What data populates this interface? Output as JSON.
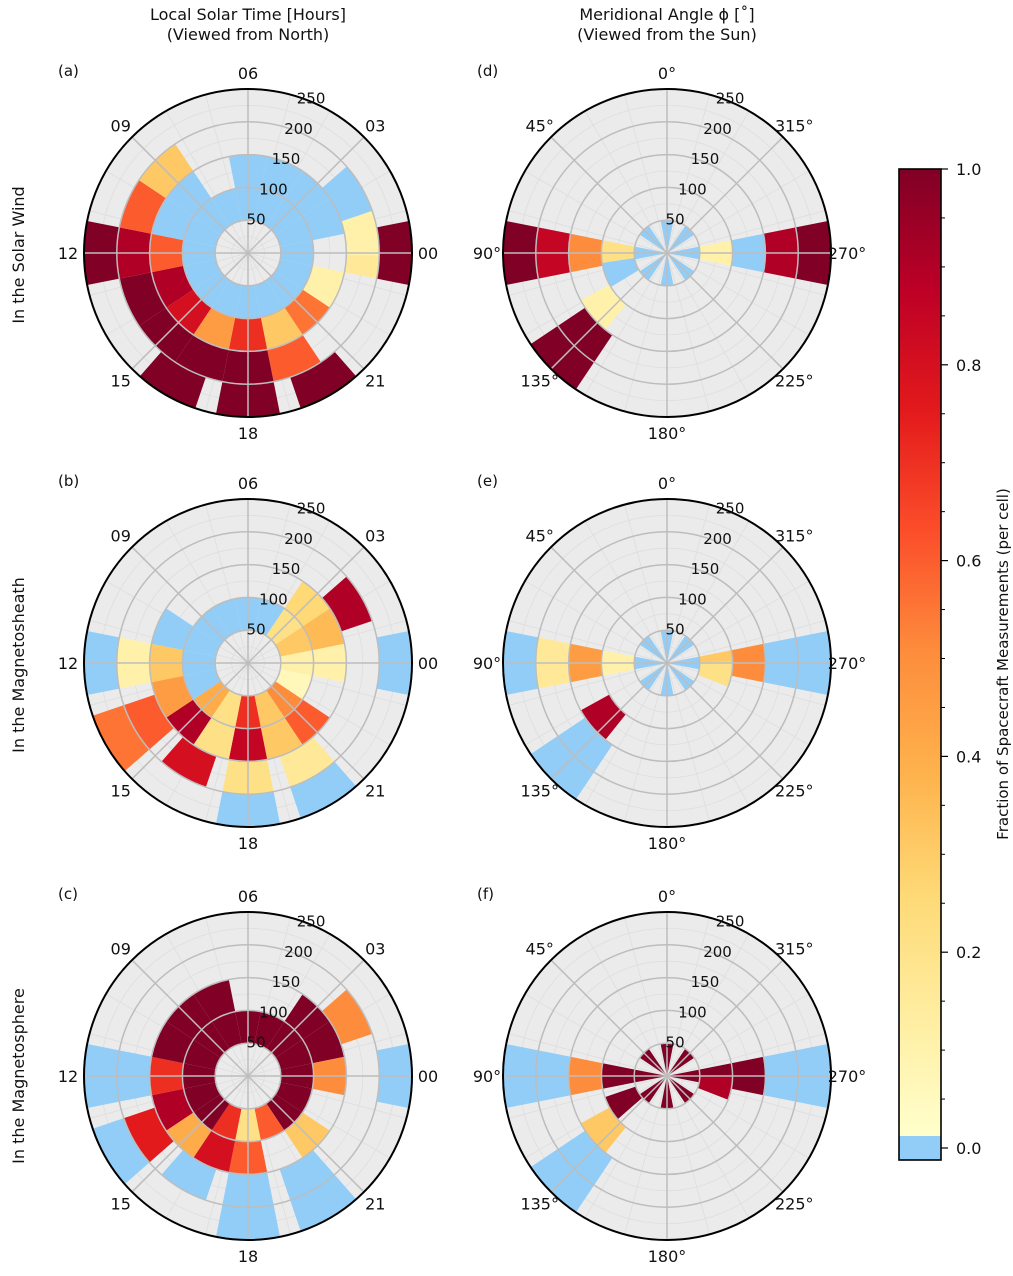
{
  "column_titles": [
    [
      "Local Solar Time [Hours]",
      "(Viewed from North)"
    ],
    [
      "Meridional Angle ϕ [˚]",
      "(Viewed from the Sun)"
    ]
  ],
  "row_labels": [
    "In the Solar Wind",
    "In the Magnetosheath",
    "In the Magnetosphere"
  ],
  "colorbar": {
    "label": "Fraction of Spacecraft Measurements (per cell)",
    "ticks": [
      "1.0",
      "0.8",
      "0.6",
      "0.4",
      "0.2",
      "0.0"
    ],
    "zero_color": "#91cdf7",
    "stops": [
      "#ffffcc",
      "#ffeda0",
      "#fed976",
      "#feb24c",
      "#fd8d3c",
      "#fc4e2a",
      "#e31a1c",
      "#bd0026",
      "#800026"
    ]
  },
  "colors": {
    "background": "#ebebeb",
    "grid": "#bdbdbd",
    "frame": "#000000"
  },
  "chart_data": [
    {
      "panel": "(a)",
      "type": "polar-heatmap",
      "coordinate": "local_solar_time",
      "region": "In the Solar Wind",
      "angle_labels": [
        "06",
        "03",
        "00",
        "21",
        "18",
        "15",
        "12",
        "09"
      ],
      "r_tick_labels": [
        "50",
        "100",
        "150",
        "200",
        "250"
      ],
      "rlim": [
        0,
        250
      ],
      "cells": [
        {
          "a": 0,
          "r": 75,
          "v": 0
        },
        {
          "a": 22.5,
          "r": 75,
          "v": 0
        },
        {
          "a": 45,
          "r": 75,
          "v": 0
        },
        {
          "a": 67.5,
          "r": 75,
          "v": 0
        },
        {
          "a": 90,
          "r": 75,
          "v": 0
        },
        {
          "a": 112.5,
          "r": 75,
          "v": 0
        },
        {
          "a": 135,
          "r": 75,
          "v": 0
        },
        {
          "a": 157.5,
          "r": 75,
          "v": 0
        },
        {
          "a": 180,
          "r": 75,
          "v": 0
        },
        {
          "a": 202.5,
          "r": 75,
          "v": 0
        },
        {
          "a": 225,
          "r": 75,
          "v": 0
        },
        {
          "a": 247.5,
          "r": 75,
          "v": 0
        },
        {
          "a": 270,
          "r": 75,
          "v": 0
        },
        {
          "a": 292.5,
          "r": 75,
          "v": 0
        },
        {
          "a": 315,
          "r": 75,
          "v": 0
        },
        {
          "a": 337.5,
          "r": 75,
          "v": 0
        },
        {
          "a": 0,
          "r": 125,
          "v": 0
        },
        {
          "a": 22.5,
          "r": 125,
          "v": 0
        },
        {
          "a": 45,
          "r": 125,
          "v": 0
        },
        {
          "a": 67.5,
          "r": 125,
          "v": 0
        },
        {
          "a": 112.5,
          "r": 125,
          "v": 0.1
        },
        {
          "a": 135,
          "r": 125,
          "v": 0.55
        },
        {
          "a": 157.5,
          "r": 125,
          "v": 0.3
        },
        {
          "a": 180,
          "r": 125,
          "v": 0.7
        },
        {
          "a": 202.5,
          "r": 125,
          "v": 0.45
        },
        {
          "a": 225,
          "r": 125,
          "v": 0.8
        },
        {
          "a": 247.5,
          "r": 125,
          "v": 0.9
        },
        {
          "a": 270,
          "r": 125,
          "v": 0.6
        },
        {
          "a": 292.5,
          "r": 125,
          "v": 0.0
        },
        {
          "a": 315,
          "r": 125,
          "v": 0
        },
        {
          "a": 90,
          "r": 175,
          "v": 0.15
        },
        {
          "a": 80,
          "r": 175,
          "v": 0.1
        },
        {
          "a": 60,
          "r": 175,
          "v": 0
        },
        {
          "a": 157.5,
          "r": 175,
          "v": 0.6
        },
        {
          "a": 180,
          "r": 175,
          "v": 1
        },
        {
          "a": 202.5,
          "r": 175,
          "v": 1
        },
        {
          "a": 225,
          "r": 175,
          "v": 1
        },
        {
          "a": 247.5,
          "r": 175,
          "v": 1
        },
        {
          "a": 270,
          "r": 175,
          "v": 0.9
        },
        {
          "a": 292.5,
          "r": 175,
          "v": 0.6
        },
        {
          "a": 315,
          "r": 175,
          "v": 0.3
        },
        {
          "a": 90,
          "r": 225,
          "v": 1
        },
        {
          "a": 150,
          "r": 225,
          "v": 1
        },
        {
          "a": 180,
          "r": 225,
          "v": 1
        },
        {
          "a": 210,
          "r": 225,
          "v": 1
        },
        {
          "a": 270,
          "r": 225,
          "v": 1
        }
      ]
    },
    {
      "panel": "(b)",
      "type": "polar-heatmap",
      "coordinate": "local_solar_time",
      "region": "In the Magnetosheath",
      "angle_labels": [
        "06",
        "03",
        "00",
        "21",
        "18",
        "15",
        "12",
        "09"
      ],
      "r_tick_labels": [
        "50",
        "100",
        "150",
        "200",
        "250"
      ],
      "rlim": [
        0,
        250
      ],
      "cells": [
        {
          "a": 0,
          "r": 75,
          "v": 0
        },
        {
          "a": 22.5,
          "r": 75,
          "v": 0
        },
        {
          "a": 45,
          "r": 75,
          "v": 0.2
        },
        {
          "a": 67.5,
          "r": 75,
          "v": 0.3
        },
        {
          "a": 90,
          "r": 75,
          "v": 0.1
        },
        {
          "a": 112.5,
          "r": 75,
          "v": 0.05
        },
        {
          "a": 135,
          "r": 75,
          "v": 0.5
        },
        {
          "a": 157.5,
          "r": 75,
          "v": 0.3
        },
        {
          "a": 180,
          "r": 75,
          "v": 0.7
        },
        {
          "a": 202.5,
          "r": 75,
          "v": 0.2
        },
        {
          "a": 225,
          "r": 75,
          "v": 0.4
        },
        {
          "a": 247.5,
          "r": 75,
          "v": 0
        },
        {
          "a": 270,
          "r": 75,
          "v": 0
        },
        {
          "a": 292.5,
          "r": 75,
          "v": 0
        },
        {
          "a": 315,
          "r": 75,
          "v": 0
        },
        {
          "a": 337.5,
          "r": 75,
          "v": 0
        },
        {
          "a": 45,
          "r": 125,
          "v": 0.25
        },
        {
          "a": 67.5,
          "r": 125,
          "v": 0.35
        },
        {
          "a": 90,
          "r": 125,
          "v": 0.1
        },
        {
          "a": 135,
          "r": 125,
          "v": 0.6
        },
        {
          "a": 157.5,
          "r": 125,
          "v": 0.3
        },
        {
          "a": 180,
          "r": 125,
          "v": 0.85
        },
        {
          "a": 202.5,
          "r": 125,
          "v": 0.2
        },
        {
          "a": 225,
          "r": 125,
          "v": 0.9
        },
        {
          "a": 247.5,
          "r": 125,
          "v": 0.45
        },
        {
          "a": 270,
          "r": 125,
          "v": 0.3
        },
        {
          "a": 292.5,
          "r": 125,
          "v": 0
        },
        {
          "a": 60,
          "r": 175,
          "v": 0.9
        },
        {
          "a": 150,
          "r": 175,
          "v": 0.15
        },
        {
          "a": 180,
          "r": 175,
          "v": 0.2
        },
        {
          "a": 210,
          "r": 175,
          "v": 0.8
        },
        {
          "a": 240,
          "r": 175,
          "v": 0.6
        },
        {
          "a": 270,
          "r": 175,
          "v": 0.1
        },
        {
          "a": 90,
          "r": 225,
          "v": 0
        },
        {
          "a": 150,
          "r": 225,
          "v": 0
        },
        {
          "a": 180,
          "r": 225,
          "v": 0
        },
        {
          "a": 240,
          "r": 225,
          "v": 0.55
        },
        {
          "a": 270,
          "r": 225,
          "v": 0
        }
      ]
    },
    {
      "panel": "(c)",
      "type": "polar-heatmap",
      "coordinate": "local_solar_time",
      "region": "In the Magnetosphere",
      "angle_labels": [
        "06",
        "03",
        "00",
        "21",
        "18",
        "15",
        "12",
        "09"
      ],
      "r_tick_labels": [
        "50",
        "100",
        "150",
        "200",
        "250"
      ],
      "rlim": [
        0,
        250
      ],
      "cells": [
        {
          "a": 0,
          "r": 75,
          "v": 1
        },
        {
          "a": 22.5,
          "r": 75,
          "v": 1
        },
        {
          "a": 45,
          "r": 75,
          "v": 1
        },
        {
          "a": 67.5,
          "r": 75,
          "v": 1
        },
        {
          "a": 90,
          "r": 75,
          "v": 1
        },
        {
          "a": 112.5,
          "r": 75,
          "v": 1
        },
        {
          "a": 135,
          "r": 75,
          "v": 1
        },
        {
          "a": 157.5,
          "r": 75,
          "v": 0.6
        },
        {
          "a": 180,
          "r": 75,
          "v": 0.2
        },
        {
          "a": 202.5,
          "r": 75,
          "v": 0.7
        },
        {
          "a": 225,
          "r": 75,
          "v": 1
        },
        {
          "a": 247.5,
          "r": 75,
          "v": 1
        },
        {
          "a": 270,
          "r": 75,
          "v": 1
        },
        {
          "a": 292.5,
          "r": 75,
          "v": 1
        },
        {
          "a": 315,
          "r": 75,
          "v": 1
        },
        {
          "a": 337.5,
          "r": 75,
          "v": 1
        },
        {
          "a": 45,
          "r": 125,
          "v": 1
        },
        {
          "a": 67.5,
          "r": 125,
          "v": 1
        },
        {
          "a": 90,
          "r": 125,
          "v": 0.5
        },
        {
          "a": 135,
          "r": 125,
          "v": 0.3
        },
        {
          "a": 180,
          "r": 125,
          "v": 0.6
        },
        {
          "a": 202.5,
          "r": 125,
          "v": 0.8
        },
        {
          "a": 225,
          "r": 125,
          "v": 0.4
        },
        {
          "a": 247.5,
          "r": 125,
          "v": 0.9
        },
        {
          "a": 270,
          "r": 125,
          "v": 0.7
        },
        {
          "a": 292.5,
          "r": 125,
          "v": 1
        },
        {
          "a": 315,
          "r": 125,
          "v": 1
        },
        {
          "a": 337.5,
          "r": 125,
          "v": 1
        },
        {
          "a": 60,
          "r": 175,
          "v": 0.5
        },
        {
          "a": 150,
          "r": 175,
          "v": 0
        },
        {
          "a": 180,
          "r": 175,
          "v": 0
        },
        {
          "a": 210,
          "r": 175,
          "v": 0
        },
        {
          "a": 240,
          "r": 175,
          "v": 0.75
        },
        {
          "a": 270,
          "r": 175,
          "v": 0
        },
        {
          "a": 90,
          "r": 225,
          "v": 0
        },
        {
          "a": 150,
          "r": 225,
          "v": 0
        },
        {
          "a": 180,
          "r": 225,
          "v": 0
        },
        {
          "a": 240,
          "r": 225,
          "v": 0
        },
        {
          "a": 270,
          "r": 225,
          "v": 0
        }
      ]
    },
    {
      "panel": "(d)",
      "type": "polar-heatmap",
      "coordinate": "meridional_angle",
      "region": "In the Solar Wind",
      "angle_labels": [
        "0°",
        "315°",
        "270°",
        "225°",
        "180°",
        "135°",
        "90°",
        "45°"
      ],
      "r_tick_labels": [
        "50",
        "100",
        "150",
        "200",
        "250"
      ],
      "rlim": [
        0,
        250
      ],
      "cells": [
        {
          "a": 0,
          "r": 25,
          "v": 0
        },
        {
          "a": 45,
          "r": 25,
          "v": 0
        },
        {
          "a": 90,
          "r": 25,
          "v": 0
        },
        {
          "a": 135,
          "r": 25,
          "v": 0
        },
        {
          "a": 180,
          "r": 25,
          "v": 0
        },
        {
          "a": 225,
          "r": 25,
          "v": 0
        },
        {
          "a": 270,
          "r": 25,
          "v": 0
        },
        {
          "a": 315,
          "r": 25,
          "v": 0
        },
        {
          "a": 90,
          "r": 75,
          "v": 0.1
        },
        {
          "a": 270,
          "r": 75,
          "v": 0.2
        },
        {
          "a": 250,
          "r": 75,
          "v": 0
        },
        {
          "a": 90,
          "r": 125,
          "v": 0
        },
        {
          "a": 270,
          "r": 125,
          "v": 0.5
        },
        {
          "a": 230,
          "r": 125,
          "v": 0.1
        },
        {
          "a": 90,
          "r": 175,
          "v": 0.9
        },
        {
          "a": 270,
          "r": 175,
          "v": 0.85
        },
        {
          "a": 225,
          "r": 175,
          "v": 1
        },
        {
          "a": 90,
          "r": 225,
          "v": 1
        },
        {
          "a": 270,
          "r": 225,
          "v": 1
        },
        {
          "a": 225,
          "r": 225,
          "v": 1
        }
      ]
    },
    {
      "panel": "(e)",
      "type": "polar-heatmap",
      "coordinate": "meridional_angle",
      "region": "In the Magnetosheath",
      "angle_labels": [
        "0°",
        "315°",
        "270°",
        "225°",
        "180°",
        "135°",
        "90°",
        "45°"
      ],
      "r_tick_labels": [
        "50",
        "100",
        "150",
        "200",
        "250"
      ],
      "rlim": [
        0,
        250
      ],
      "cells": [
        {
          "a": 0,
          "r": 25,
          "v": 0
        },
        {
          "a": 45,
          "r": 25,
          "v": 0
        },
        {
          "a": 90,
          "r": 25,
          "v": 0
        },
        {
          "a": 135,
          "r": 25,
          "v": 0
        },
        {
          "a": 180,
          "r": 25,
          "v": 0
        },
        {
          "a": 225,
          "r": 25,
          "v": 0
        },
        {
          "a": 270,
          "r": 25,
          "v": 0
        },
        {
          "a": 315,
          "r": 25,
          "v": 0
        },
        {
          "a": 90,
          "r": 75,
          "v": 0.3
        },
        {
          "a": 100,
          "r": 75,
          "v": 0.2
        },
        {
          "a": 270,
          "r": 75,
          "v": 0.1
        },
        {
          "a": 90,
          "r": 125,
          "v": 0.5
        },
        {
          "a": 270,
          "r": 125,
          "v": 0.45
        },
        {
          "a": 230,
          "r": 125,
          "v": 0.9
        },
        {
          "a": 90,
          "r": 175,
          "v": 0
        },
        {
          "a": 270,
          "r": 175,
          "v": 0.15
        },
        {
          "a": 225,
          "r": 175,
          "v": 0
        },
        {
          "a": 90,
          "r": 225,
          "v": 0
        },
        {
          "a": 270,
          "r": 225,
          "v": 0
        },
        {
          "a": 225,
          "r": 225,
          "v": 0
        }
      ]
    },
    {
      "panel": "(f)",
      "type": "polar-heatmap",
      "coordinate": "meridional_angle",
      "region": "In the Magnetosphere",
      "angle_labels": [
        "0°",
        "315°",
        "270°",
        "225°",
        "180°",
        "135°",
        "90°",
        "45°"
      ],
      "r_tick_labels": [
        "50",
        "100",
        "150",
        "200",
        "250"
      ],
      "rlim": [
        0,
        250
      ],
      "cells": [
        {
          "a": 0,
          "r": 25,
          "v": 1
        },
        {
          "a": 45,
          "r": 25,
          "v": 1
        },
        {
          "a": 90,
          "r": 25,
          "v": 1
        },
        {
          "a": 135,
          "r": 25,
          "v": 1
        },
        {
          "a": 180,
          "r": 25,
          "v": 1
        },
        {
          "a": 225,
          "r": 25,
          "v": 1
        },
        {
          "a": 270,
          "r": 25,
          "v": 1
        },
        {
          "a": 315,
          "r": 25,
          "v": 1
        },
        {
          "a": 90,
          "r": 75,
          "v": 1
        },
        {
          "a": 100,
          "r": 75,
          "v": 0.9
        },
        {
          "a": 270,
          "r": 75,
          "v": 1
        },
        {
          "a": 240,
          "r": 75,
          "v": 1
        },
        {
          "a": 90,
          "r": 125,
          "v": 1
        },
        {
          "a": 270,
          "r": 125,
          "v": 0.5
        },
        {
          "a": 230,
          "r": 125,
          "v": 0.3
        },
        {
          "a": 90,
          "r": 175,
          "v": 0
        },
        {
          "a": 270,
          "r": 175,
          "v": 0
        },
        {
          "a": 225,
          "r": 175,
          "v": 0
        },
        {
          "a": 90,
          "r": 225,
          "v": 0
        },
        {
          "a": 270,
          "r": 225,
          "v": 0
        },
        {
          "a": 225,
          "r": 225,
          "v": 0
        }
      ]
    }
  ]
}
